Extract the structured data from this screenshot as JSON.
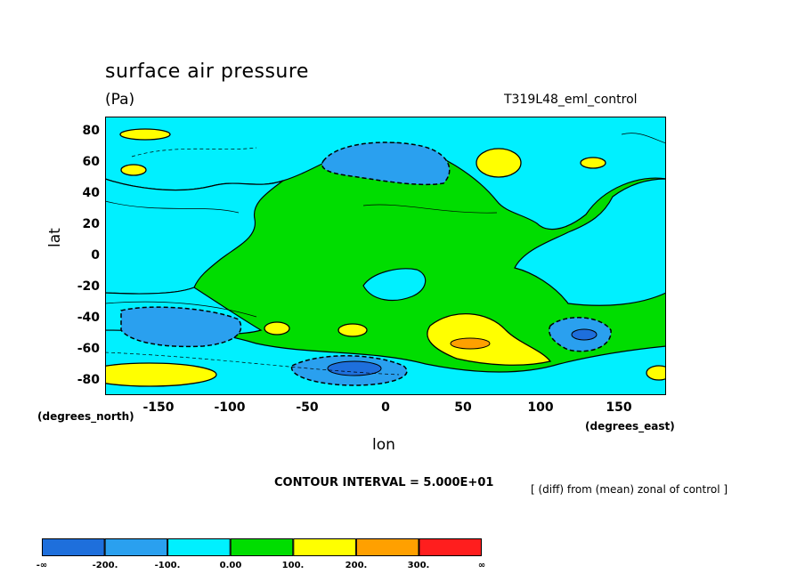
{
  "chart_data": {
    "type": "heatmap",
    "title": "surface air pressure",
    "units": "(Pa)",
    "experiment": "T319L48_eml_control",
    "xlabel": "lon",
    "ylabel": "lat",
    "x_unit_label": "(degrees_east)",
    "y_unit_label": "(degrees_north)",
    "xlim": [
      -180,
      180
    ],
    "ylim": [
      -90,
      90
    ],
    "x_ticks": [
      "-150",
      "-100",
      "-50",
      "0",
      "50",
      "100",
      "150"
    ],
    "y_ticks": [
      "80",
      "60",
      "40",
      "20",
      "0",
      "-20",
      "-40",
      "-60",
      "-80"
    ],
    "contour_interval_text": "CONTOUR INTERVAL = 5.000E+01",
    "note": "[ (diff) from (mean) zonal of control ]",
    "colorbar": {
      "labels": [
        "-∞",
        "-200.",
        "-100.",
        "0.00",
        "100.",
        "200.",
        "300.",
        "∞"
      ],
      "colors": [
        "#1e6fdc",
        "#2aa0ef",
        "#00f0ff",
        "#00dd00",
        "#ffff00",
        "#ffa000",
        "#ff1e1e"
      ]
    }
  }
}
